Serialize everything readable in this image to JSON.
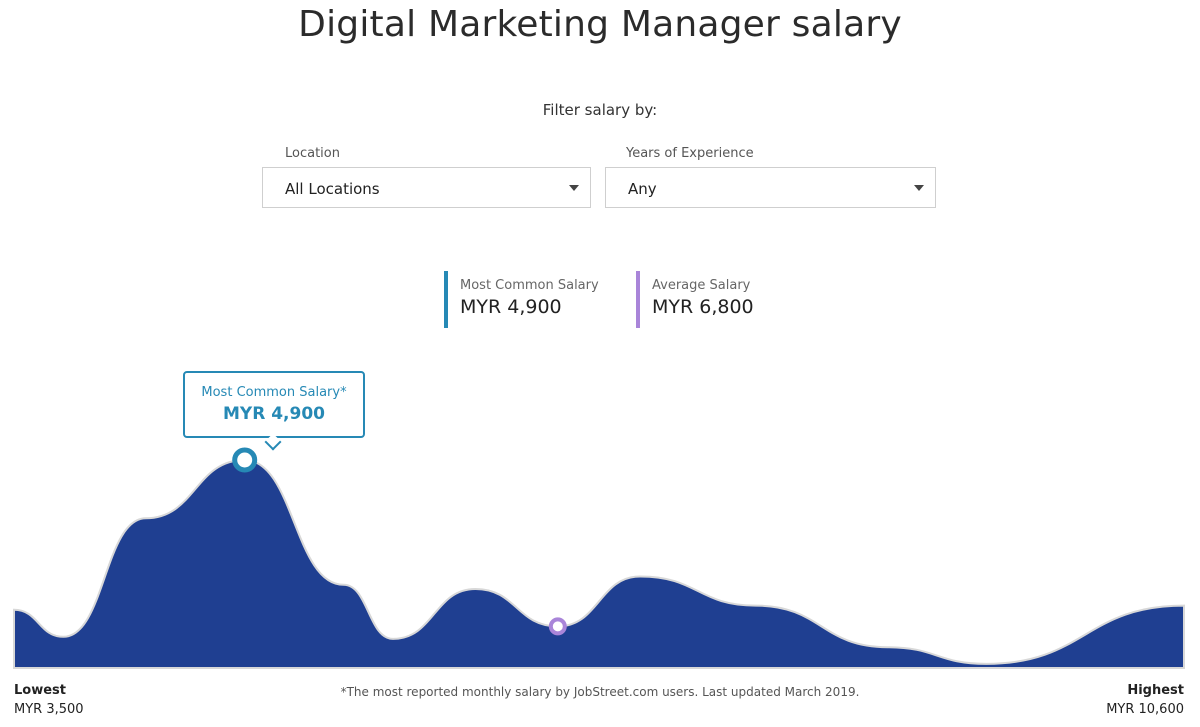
{
  "page": {
    "title": "Digital Marketing Manager salary",
    "filter_heading": "Filter salary by:"
  },
  "filters": {
    "location": {
      "label": "Location",
      "value": "All Locations"
    },
    "experience": {
      "label": "Years of Experience",
      "value": "Any"
    }
  },
  "stats": {
    "most_common": {
      "label": "Most Common Salary",
      "value": "MYR 4,900",
      "color": "#2689b5"
    },
    "average": {
      "label": "Average Salary",
      "value": "MYR 6,800",
      "color": "#a985d9"
    }
  },
  "callout": {
    "label": "Most Common Salary*",
    "value": "MYR 4,900"
  },
  "footer": {
    "lowest_label": "Lowest",
    "lowest_value": "MYR 3,500",
    "highest_label": "Highest",
    "highest_value": "MYR 10,600",
    "note": "*The most reported monthly salary by JobStreet.com users. Last updated March 2019."
  },
  "chart_data": {
    "type": "area",
    "title": "Digital Marketing Manager salary",
    "xlabel": "",
    "ylabel": "",
    "xlim": [
      3500,
      10600
    ],
    "x": [
      3500,
      3800,
      4300,
      4900,
      5500,
      5800,
      6300,
      6800,
      7300,
      8000,
      8800,
      9400,
      10600
    ],
    "values": [
      0.28,
      0.15,
      0.72,
      1.0,
      0.4,
      0.14,
      0.38,
      0.2,
      0.44,
      0.3,
      0.1,
      0.02,
      0.3
    ],
    "markers": [
      {
        "name": "Most Common Salary",
        "x": 4900,
        "color": "#2689b5"
      },
      {
        "name": "Average Salary",
        "x": 6800,
        "color": "#a985d9"
      }
    ],
    "fill_color": "#1f3f91",
    "grid": false,
    "legend": "none"
  }
}
